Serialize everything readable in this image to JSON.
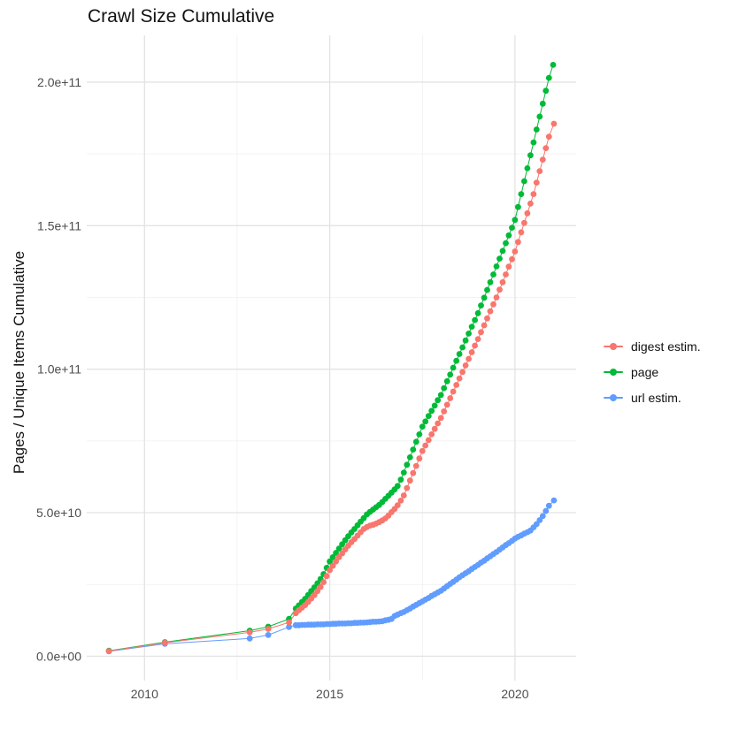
{
  "chart_data": {
    "type": "line",
    "markers": true,
    "title": "Crawl Size Cumulative",
    "xlabel": "",
    "ylabel": "Pages / Unique Items Cumulative",
    "legend_position": "right",
    "grid": true,
    "unit_note": "point values are in billions (1e9) of pages / unique items",
    "xlim": [
      2008.44,
      2021.65
    ],
    "ylim_e9": [
      -8.5,
      216.3
    ],
    "x_ticks": {
      "labels": [
        "2010",
        "2015",
        "2020"
      ],
      "values": [
        2010,
        2015,
        2020
      ]
    },
    "x_minor": [
      2012.5,
      2017.5
    ],
    "y_ticks": {
      "labels": [
        "0.0e+00",
        "5.0e+10",
        "1.0e+11",
        "1.5e+11",
        "2.0e+11"
      ],
      "values_e9": [
        0,
        50,
        100,
        150,
        200
      ]
    },
    "y_minor_e9": [
      25,
      75,
      125,
      175
    ],
    "series": [
      {
        "name": "digest estim.",
        "color": "#F8766D",
        "points": [
          [
            2009.04,
            1.8
          ],
          [
            2010.55,
            4.7
          ],
          [
            2012.84,
            8.3
          ],
          [
            2013.34,
            9.5
          ],
          [
            2013.9,
            11.8
          ],
          [
            2014.083,
            15.0
          ],
          [
            2014.167,
            16.0
          ],
          [
            2014.25,
            16.9
          ],
          [
            2014.333,
            17.8
          ],
          [
            2014.417,
            18.9
          ],
          [
            2014.5,
            20.1
          ],
          [
            2014.583,
            21.3
          ],
          [
            2014.667,
            22.7
          ],
          [
            2014.75,
            24.1
          ],
          [
            2014.833,
            25.8
          ],
          [
            2014.917,
            27.9
          ],
          [
            2015.0,
            30.0
          ],
          [
            2015.083,
            31.5
          ],
          [
            2015.167,
            33.0
          ],
          [
            2015.25,
            34.5
          ],
          [
            2015.333,
            35.8
          ],
          [
            2015.417,
            37.2
          ],
          [
            2015.5,
            38.5
          ],
          [
            2015.583,
            39.7
          ],
          [
            2015.667,
            40.8
          ],
          [
            2015.75,
            42.0
          ],
          [
            2015.833,
            43.2
          ],
          [
            2015.917,
            44.3
          ],
          [
            2016.0,
            45.0
          ],
          [
            2016.083,
            45.5
          ],
          [
            2016.167,
            45.8
          ],
          [
            2016.25,
            46.2
          ],
          [
            2016.333,
            46.7
          ],
          [
            2016.417,
            47.3
          ],
          [
            2016.5,
            48.0
          ],
          [
            2016.583,
            49.0
          ],
          [
            2016.667,
            50.2
          ],
          [
            2016.75,
            51.3
          ],
          [
            2016.833,
            52.6
          ],
          [
            2016.917,
            54.2
          ],
          [
            2017.0,
            56.0
          ],
          [
            2017.083,
            58.6
          ],
          [
            2017.167,
            61.2
          ],
          [
            2017.25,
            63.8
          ],
          [
            2017.333,
            66.3
          ],
          [
            2017.417,
            68.9
          ],
          [
            2017.5,
            71.5
          ],
          [
            2017.583,
            73.4
          ],
          [
            2017.667,
            75.3
          ],
          [
            2017.75,
            77.3
          ],
          [
            2017.833,
            79.2
          ],
          [
            2017.917,
            81.1
          ],
          [
            2018.0,
            83.0
          ],
          [
            2018.083,
            85.3
          ],
          [
            2018.167,
            87.6
          ],
          [
            2018.25,
            89.9
          ],
          [
            2018.333,
            92.2
          ],
          [
            2018.417,
            94.5
          ],
          [
            2018.5,
            96.8
          ],
          [
            2018.583,
            99.0
          ],
          [
            2018.667,
            101.3
          ],
          [
            2018.75,
            103.6
          ],
          [
            2018.833,
            105.9
          ],
          [
            2018.917,
            108.2
          ],
          [
            2019.0,
            110.5
          ],
          [
            2019.083,
            112.9
          ],
          [
            2019.167,
            115.3
          ],
          [
            2019.25,
            117.7
          ],
          [
            2019.333,
            120.2
          ],
          [
            2019.417,
            122.6
          ],
          [
            2019.5,
            125.0
          ],
          [
            2019.583,
            127.7
          ],
          [
            2019.667,
            130.3
          ],
          [
            2019.75,
            133.0
          ],
          [
            2019.833,
            135.7
          ],
          [
            2019.917,
            138.3
          ],
          [
            2020.0,
            141.0
          ],
          [
            2020.083,
            144.3
          ],
          [
            2020.167,
            147.7
          ],
          [
            2020.25,
            151.0
          ],
          [
            2020.333,
            154.3
          ],
          [
            2020.417,
            157.7
          ],
          [
            2020.5,
            161.0
          ],
          [
            2020.583,
            165.0
          ],
          [
            2020.667,
            169.0
          ],
          [
            2020.75,
            173.0
          ],
          [
            2020.833,
            177.0
          ],
          [
            2020.917,
            181.0
          ],
          [
            2021.05,
            185.5
          ]
        ]
      },
      {
        "name": "page",
        "color": "#00BA38",
        "points": [
          [
            2009.04,
            1.9
          ],
          [
            2010.55,
            4.9
          ],
          [
            2012.84,
            8.9
          ],
          [
            2013.34,
            10.3
          ],
          [
            2013.9,
            13.0
          ],
          [
            2014.083,
            16.6
          ],
          [
            2014.167,
            17.7
          ],
          [
            2014.25,
            18.9
          ],
          [
            2014.333,
            20.0
          ],
          [
            2014.417,
            21.3
          ],
          [
            2014.5,
            22.7
          ],
          [
            2014.583,
            24.0
          ],
          [
            2014.667,
            25.4
          ],
          [
            2014.75,
            26.9
          ],
          [
            2014.833,
            28.6
          ],
          [
            2014.917,
            30.8
          ],
          [
            2015.0,
            33.0
          ],
          [
            2015.083,
            34.5
          ],
          [
            2015.167,
            36.0
          ],
          [
            2015.25,
            37.5
          ],
          [
            2015.333,
            39.0
          ],
          [
            2015.417,
            40.4
          ],
          [
            2015.5,
            41.8
          ],
          [
            2015.583,
            43.1
          ],
          [
            2015.667,
            44.3
          ],
          [
            2015.75,
            45.6
          ],
          [
            2015.833,
            46.9
          ],
          [
            2015.917,
            48.1
          ],
          [
            2016.0,
            49.4
          ],
          [
            2016.083,
            50.3
          ],
          [
            2016.167,
            51.1
          ],
          [
            2016.25,
            51.9
          ],
          [
            2016.333,
            52.7
          ],
          [
            2016.417,
            53.7
          ],
          [
            2016.5,
            54.8
          ],
          [
            2016.583,
            55.9
          ],
          [
            2016.667,
            57.0
          ],
          [
            2016.75,
            58.1
          ],
          [
            2016.833,
            59.3
          ],
          [
            2016.917,
            61.5
          ],
          [
            2017.0,
            64.0
          ],
          [
            2017.083,
            66.7
          ],
          [
            2017.167,
            69.3
          ],
          [
            2017.25,
            72.0
          ],
          [
            2017.333,
            74.7
          ],
          [
            2017.417,
            77.3
          ],
          [
            2017.5,
            80.0
          ],
          [
            2017.583,
            81.8
          ],
          [
            2017.667,
            83.7
          ],
          [
            2017.75,
            85.5
          ],
          [
            2017.833,
            87.3
          ],
          [
            2017.917,
            89.2
          ],
          [
            2018.0,
            91.0
          ],
          [
            2018.083,
            93.4
          ],
          [
            2018.167,
            95.8
          ],
          [
            2018.25,
            98.1
          ],
          [
            2018.333,
            100.5
          ],
          [
            2018.417,
            102.9
          ],
          [
            2018.5,
            105.3
          ],
          [
            2018.583,
            107.6
          ],
          [
            2018.667,
            110.0
          ],
          [
            2018.75,
            112.4
          ],
          [
            2018.833,
            114.8
          ],
          [
            2018.917,
            117.1
          ],
          [
            2019.0,
            119.5
          ],
          [
            2019.083,
            122.2
          ],
          [
            2019.167,
            124.9
          ],
          [
            2019.25,
            127.6
          ],
          [
            2019.333,
            130.3
          ],
          [
            2019.417,
            133.0
          ],
          [
            2019.5,
            135.8
          ],
          [
            2019.583,
            138.5
          ],
          [
            2019.667,
            141.2
          ],
          [
            2019.75,
            143.9
          ],
          [
            2019.833,
            146.6
          ],
          [
            2019.917,
            149.3
          ],
          [
            2020.0,
            152.0
          ],
          [
            2020.083,
            156.5
          ],
          [
            2020.167,
            161.0
          ],
          [
            2020.25,
            165.5
          ],
          [
            2020.333,
            170.0
          ],
          [
            2020.417,
            174.5
          ],
          [
            2020.5,
            179.0
          ],
          [
            2020.583,
            183.5
          ],
          [
            2020.667,
            188.0
          ],
          [
            2020.75,
            192.5
          ],
          [
            2020.833,
            197.0
          ],
          [
            2020.917,
            201.5
          ],
          [
            2021.03,
            206.0
          ]
        ]
      },
      {
        "name": "url estim.",
        "color": "#619CFF",
        "points": [
          [
            2009.04,
            1.7
          ],
          [
            2010.55,
            4.3
          ],
          [
            2012.84,
            6.2
          ],
          [
            2013.34,
            7.4
          ],
          [
            2013.9,
            10.2
          ],
          [
            2014.083,
            10.8
          ],
          [
            2014.167,
            10.8
          ],
          [
            2014.25,
            10.9
          ],
          [
            2014.333,
            10.9
          ],
          [
            2014.417,
            11.0
          ],
          [
            2014.5,
            11.0
          ],
          [
            2014.583,
            11.0
          ],
          [
            2014.667,
            11.1
          ],
          [
            2014.75,
            11.1
          ],
          [
            2014.833,
            11.1
          ],
          [
            2014.917,
            11.2
          ],
          [
            2015.0,
            11.2
          ],
          [
            2015.083,
            11.3
          ],
          [
            2015.167,
            11.3
          ],
          [
            2015.25,
            11.4
          ],
          [
            2015.333,
            11.4
          ],
          [
            2015.417,
            11.4
          ],
          [
            2015.5,
            11.5
          ],
          [
            2015.583,
            11.5
          ],
          [
            2015.667,
            11.6
          ],
          [
            2015.75,
            11.6
          ],
          [
            2015.833,
            11.7
          ],
          [
            2015.917,
            11.7
          ],
          [
            2016.0,
            11.8
          ],
          [
            2016.083,
            11.9
          ],
          [
            2016.167,
            12.0
          ],
          [
            2016.25,
            12.0
          ],
          [
            2016.333,
            12.1
          ],
          [
            2016.417,
            12.2
          ],
          [
            2016.5,
            12.5
          ],
          [
            2016.583,
            12.7
          ],
          [
            2016.667,
            13.0
          ],
          [
            2016.75,
            14.0
          ],
          [
            2016.833,
            14.5
          ],
          [
            2016.917,
            15.0
          ],
          [
            2017.0,
            15.4
          ],
          [
            2017.083,
            16.0
          ],
          [
            2017.167,
            16.6
          ],
          [
            2017.25,
            17.3
          ],
          [
            2017.333,
            17.9
          ],
          [
            2017.417,
            18.5
          ],
          [
            2017.5,
            19.1
          ],
          [
            2017.583,
            19.7
          ],
          [
            2017.667,
            20.3
          ],
          [
            2017.75,
            21.0
          ],
          [
            2017.833,
            21.6
          ],
          [
            2017.917,
            22.2
          ],
          [
            2018.0,
            22.8
          ],
          [
            2018.083,
            23.6
          ],
          [
            2018.167,
            24.4
          ],
          [
            2018.25,
            25.2
          ],
          [
            2018.333,
            25.9
          ],
          [
            2018.417,
            26.7
          ],
          [
            2018.5,
            27.5
          ],
          [
            2018.583,
            28.2
          ],
          [
            2018.667,
            28.9
          ],
          [
            2018.75,
            29.6
          ],
          [
            2018.833,
            30.4
          ],
          [
            2018.917,
            31.1
          ],
          [
            2019.0,
            31.8
          ],
          [
            2019.083,
            32.6
          ],
          [
            2019.167,
            33.3
          ],
          [
            2019.25,
            34.1
          ],
          [
            2019.333,
            34.8
          ],
          [
            2019.417,
            35.6
          ],
          [
            2019.5,
            36.3
          ],
          [
            2019.583,
            37.1
          ],
          [
            2019.667,
            37.9
          ],
          [
            2019.75,
            38.7
          ],
          [
            2019.833,
            39.4
          ],
          [
            2019.917,
            40.2
          ],
          [
            2020.0,
            41.0
          ],
          [
            2020.083,
            41.6
          ],
          [
            2020.167,
            42.1
          ],
          [
            2020.25,
            42.7
          ],
          [
            2020.333,
            43.2
          ],
          [
            2020.417,
            43.8
          ],
          [
            2020.5,
            44.9
          ],
          [
            2020.583,
            46.0
          ],
          [
            2020.667,
            47.4
          ],
          [
            2020.75,
            48.8
          ],
          [
            2020.833,
            50.6
          ],
          [
            2020.917,
            52.4
          ],
          [
            2021.05,
            54.3
          ]
        ]
      }
    ]
  }
}
